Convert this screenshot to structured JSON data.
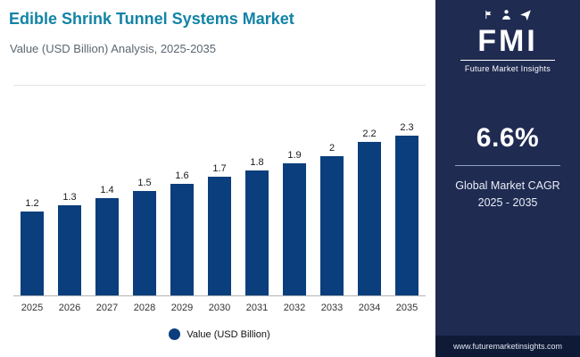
{
  "header": {
    "title": "Edible Shrink Tunnel Systems Market",
    "subtitle": "Value (USD Billion) Analysis, 2025-2035"
  },
  "sidebar": {
    "logo_text": "FMI",
    "brand_name": "Future Market Insights",
    "cagr_value": "6.6%",
    "cagr_label": "Global Market CAGR 2025 - 2035",
    "website": "www.futuremarketinsights.com",
    "bg_color": "#1f2b51",
    "footer_bg": "#0f1a36"
  },
  "chart_data": {
    "type": "bar",
    "title": "Edible Shrink Tunnel Systems Market",
    "xlabel": "",
    "ylabel": "Value (USD Billion)",
    "categories": [
      "2025",
      "2026",
      "2027",
      "2028",
      "2029",
      "2030",
      "2031",
      "2032",
      "2033",
      "2034",
      "2035"
    ],
    "values": [
      1.2,
      1.3,
      1.4,
      1.5,
      1.6,
      1.7,
      1.8,
      1.9,
      2.0,
      2.2,
      2.3
    ],
    "labels": [
      "1.2",
      "1.3",
      "1.4",
      "1.5",
      "1.6",
      "1.7",
      "1.8",
      "1.9",
      "2",
      "2.2",
      "2.3"
    ],
    "legend": "Value (USD Billion)",
    "legend_position": "bottom",
    "grid": false,
    "ylim": [
      0,
      3
    ],
    "bar_color": "#0a3e7c"
  }
}
